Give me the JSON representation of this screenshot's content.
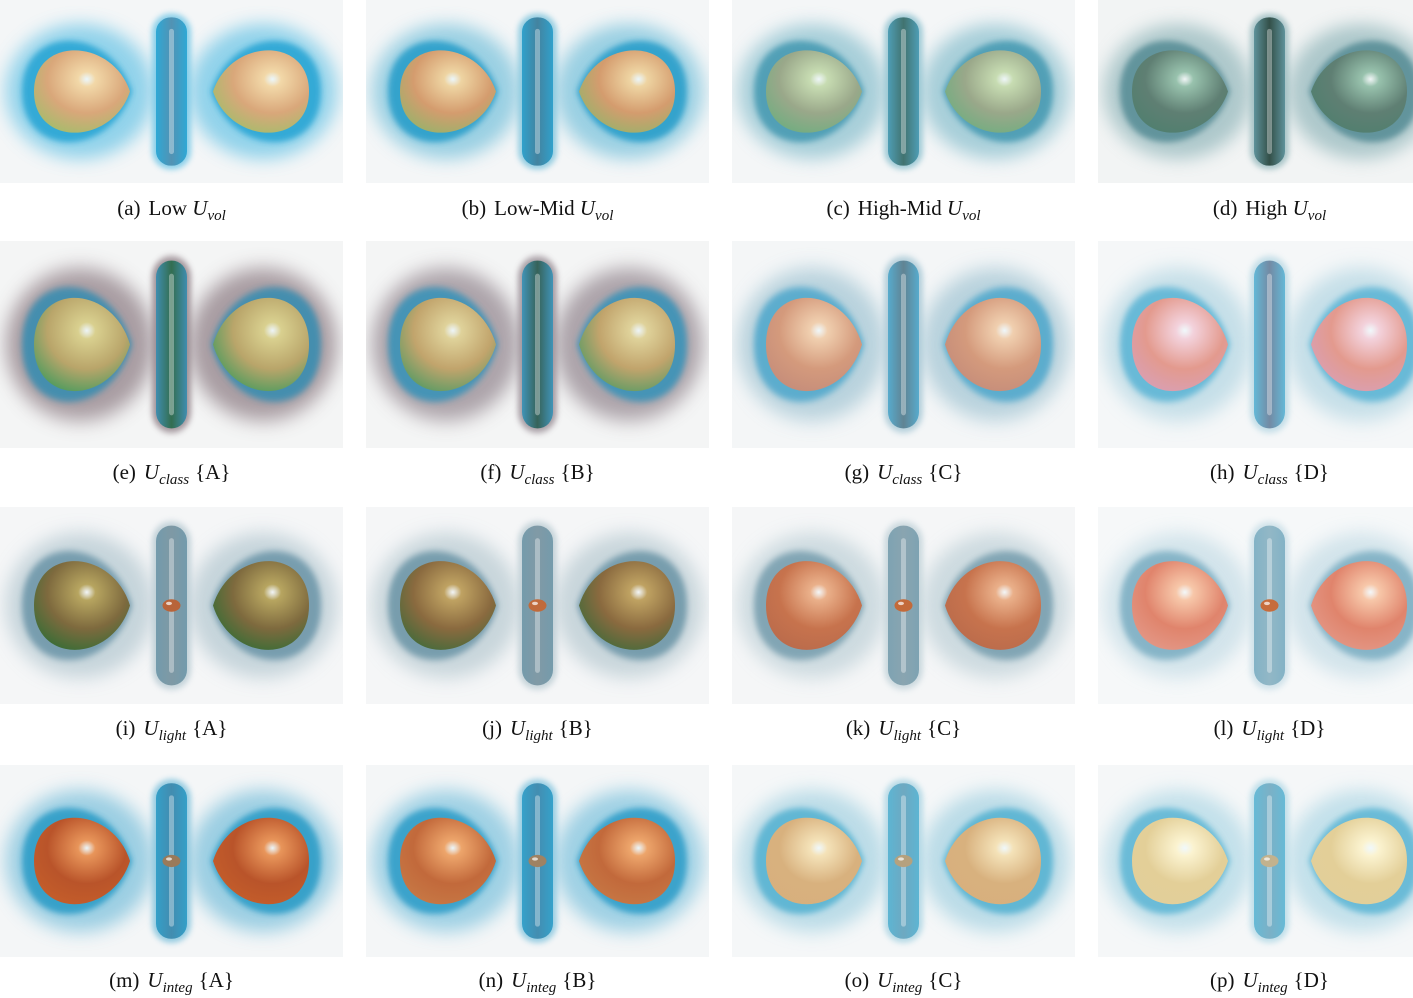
{
  "figure": {
    "panels": [
      {
        "label": "(a)",
        "prefix": "Low",
        "symbol": "U",
        "subscript": "vol",
        "suffix": "",
        "bg": "#f4f6f7",
        "halo": "#2aa6d4",
        "halo2": "#6fc6e6",
        "core": "#d9a77a",
        "coreHi": "#f2d8a8",
        "tint": "#9fbf6a",
        "stick": "#4f8fb0",
        "small": ""
      },
      {
        "label": "(b)",
        "prefix": "Low-Mid",
        "symbol": "U",
        "subscript": "vol",
        "suffix": "",
        "bg": "#f4f6f7",
        "halo": "#2b9fca",
        "halo2": "#7cc3dc",
        "core": "#d49c6e",
        "coreHi": "#eed4a2",
        "tint": "#93b46a",
        "stick": "#3f7f9c",
        "small": ""
      },
      {
        "label": "(c)",
        "prefix": "High-Mid",
        "symbol": "U",
        "subscript": "vol",
        "suffix": "",
        "bg": "#f4f6f7",
        "halo": "#4a9bb3",
        "halo2": "#8dc1cf",
        "core": "#9aa88a",
        "coreHi": "#c7dcb2",
        "tint": "#6cae7f",
        "stick": "#3c6e6a",
        "small": ""
      },
      {
        "label": "(d)",
        "prefix": "High",
        "symbol": "U",
        "subscript": "vol",
        "suffix": "",
        "bg": "#f2f4f4",
        "halo": "#5a8f98",
        "halo2": "#96b9bd",
        "core": "#5f7f73",
        "coreHi": "#98c2ad",
        "tint": "#4e7f6e",
        "stick": "#2d4a42",
        "small": ""
      },
      {
        "label": "(e)",
        "prefix": "",
        "symbol": "U",
        "subscript": "class",
        "suffix": "{A}",
        "bg": "#f4f5f5",
        "halo": "#3a8db0",
        "halo2": "#8f7f86",
        "core": "#b9a56a",
        "coreHi": "#d9d08f",
        "tint": "#3f9a5c",
        "stick": "#2d6b4c",
        "small": ""
      },
      {
        "label": "(f)",
        "prefix": "",
        "symbol": "U",
        "subscript": "class",
        "suffix": "{B}",
        "bg": "#f4f5f5",
        "halo": "#3b93b8",
        "halo2": "#948891",
        "core": "#c1a46c",
        "coreHi": "#dfd29a",
        "tint": "#4f9a63",
        "stick": "#305f55",
        "small": ""
      },
      {
        "label": "(g)",
        "prefix": "",
        "symbol": "U",
        "subscript": "class",
        "suffix": "{C}",
        "bg": "#f4f6f7",
        "halo": "#52a9cc",
        "halo2": "#a4c6d4",
        "core": "#d49a7c",
        "coreHi": "#f0cfaf",
        "tint": "#c38b7a",
        "stick": "#5c7f8f",
        "small": ""
      },
      {
        "label": "(h)",
        "prefix": "",
        "symbol": "U",
        "subscript": "class",
        "suffix": "{D}",
        "bg": "#f5f7f8",
        "halo": "#5fb6d6",
        "halo2": "#b5d7e3",
        "core": "#e39a8e",
        "coreHi": "#f3d2dc",
        "tint": "#d8a0b8",
        "stick": "#6f86a0",
        "small": ""
      },
      {
        "label": "(i)",
        "prefix": "",
        "symbol": "U",
        "subscript": "light",
        "suffix": "{A}",
        "bg": "#f5f6f7",
        "halo": "#6f98aa",
        "halo2": "#b6c9d1",
        "core": "#7e6a3e",
        "coreHi": "#b7a560",
        "tint": "#2f6d35",
        "stick": "#7b96a2",
        "small": "#b8643a"
      },
      {
        "label": "(j)",
        "prefix": "",
        "symbol": "U",
        "subscript": "light",
        "suffix": "{B}",
        "bg": "#f5f6f7",
        "halo": "#7098a9",
        "halo2": "#b9cbd2",
        "core": "#8a6a3f",
        "coreHi": "#bfa262",
        "tint": "#3d6b3a",
        "stick": "#7d97a3",
        "small": "#c06a3b"
      },
      {
        "label": "(k)",
        "prefix": "",
        "symbol": "U",
        "subscript": "light",
        "suffix": "{C}",
        "bg": "#f5f6f7",
        "halo": "#7aa0b0",
        "halo2": "#c0d1d8",
        "core": "#c7734d",
        "coreHi": "#eab08a",
        "tint": "#b86a4c",
        "stick": "#86a2ae",
        "small": "#c36a3a"
      },
      {
        "label": "(l)",
        "prefix": "",
        "symbol": "U",
        "subscript": "light",
        "suffix": "{D}",
        "bg": "#f6f8f9",
        "halo": "#7fb0c4",
        "halo2": "#c6dde6",
        "core": "#e0846c",
        "coreHi": "#f7c7a9",
        "tint": "#e39a8a",
        "stick": "#8fb5c4",
        "small": "#c66c3c"
      },
      {
        "label": "(m)",
        "prefix": "",
        "symbol": "U",
        "subscript": "integ",
        "suffix": "{A}",
        "bg": "#f4f6f7",
        "halo": "#2f9dc7",
        "halo2": "#7ec1dc",
        "core": "#b9542a",
        "coreHi": "#e8955a",
        "tint": "#c65f2b",
        "stick": "#3e89ad",
        "small": "#9a7a5a"
      },
      {
        "label": "(n)",
        "prefix": "",
        "symbol": "U",
        "subscript": "integ",
        "suffix": "{B}",
        "bg": "#f4f6f7",
        "halo": "#309fc9",
        "halo2": "#82c4de",
        "core": "#c2693b",
        "coreHi": "#eda56b",
        "tint": "#c77a46",
        "stick": "#3f8aae",
        "small": "#9f8263"
      },
      {
        "label": "(o)",
        "prefix": "",
        "symbol": "U",
        "subscript": "integ",
        "suffix": "{C}",
        "bg": "#f5f7f8",
        "halo": "#58b3d2",
        "halo2": "#a7d3e2",
        "core": "#d8b17e",
        "coreHi": "#f4e2b8",
        "tint": "#d7b07d",
        "stick": "#6aa6bf",
        "small": "#b5a17e"
      },
      {
        "label": "(p)",
        "prefix": "",
        "symbol": "U",
        "subscript": "integ",
        "suffix": "{D}",
        "bg": "#f5f7f8",
        "halo": "#62b8d5",
        "halo2": "#b2d9e6",
        "core": "#e3cf98",
        "coreHi": "#fbf3d0",
        "tint": "#e2cf9a",
        "stick": "#78aec4",
        "small": "#c2b28e"
      }
    ]
  }
}
